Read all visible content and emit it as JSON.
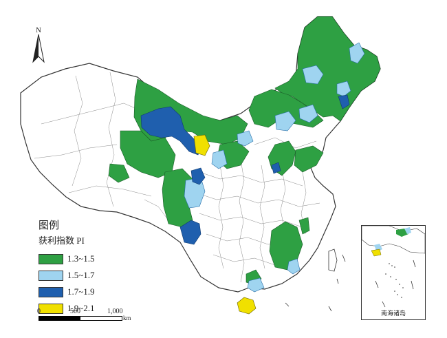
{
  "map": {
    "legend_title": "图例",
    "legend_subtitle": "获利指数 PI",
    "legend_items": [
      {
        "label": "1.3~1.5",
        "color": "#2ea043"
      },
      {
        "label": "1.5~1.7",
        "color": "#9fd4f0"
      },
      {
        "label": "1.7~1.9",
        "color": "#1f5fae"
      },
      {
        "label": "1.9~2.1",
        "color": "#f0e000"
      }
    ],
    "north_label": "N",
    "scale": {
      "ticks": [
        "0",
        "500",
        "1,000"
      ],
      "unit": "km"
    },
    "inset_label": "南海诸岛"
  }
}
